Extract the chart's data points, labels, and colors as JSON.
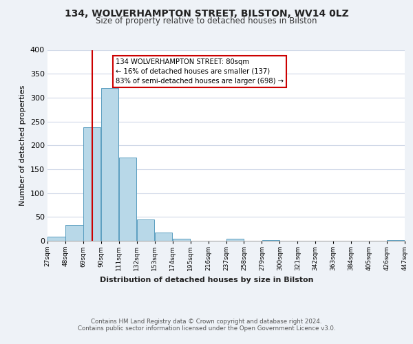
{
  "title": "134, WOLVERHAMPTON STREET, BILSTON, WV14 0LZ",
  "subtitle": "Size of property relative to detached houses in Bilston",
  "xlabel": "Distribution of detached houses by size in Bilston",
  "ylabel": "Number of detached properties",
  "bar_color": "#b8d8e8",
  "bar_edge_color": "#5a9ec0",
  "bg_color": "#eef2f7",
  "plot_bg_color": "#ffffff",
  "grid_color": "#d0d8e8",
  "vline_color": "#cc0000",
  "vline_x": 80,
  "annotation_text": "134 WOLVERHAMPTON STREET: 80sqm\n← 16% of detached houses are smaller (137)\n83% of semi-detached houses are larger (698) →",
  "annotation_box_color": "#ffffff",
  "annotation_box_edge": "#cc0000",
  "footer_line1": "Contains HM Land Registry data © Crown copyright and database right 2024.",
  "footer_line2": "Contains public sector information licensed under the Open Government Licence v3.0.",
  "bins": [
    27,
    48,
    69,
    90,
    111,
    132,
    153,
    174,
    195,
    216,
    237,
    258,
    279,
    300,
    321,
    342,
    363,
    384,
    405,
    426,
    447
  ],
  "counts": [
    8,
    33,
    238,
    320,
    175,
    45,
    17,
    5,
    0,
    0,
    4,
    0,
    1,
    0,
    0,
    0,
    0,
    0,
    0,
    2
  ],
  "ylim": [
    0,
    400
  ],
  "yticks": [
    0,
    50,
    100,
    150,
    200,
    250,
    300,
    350,
    400
  ]
}
